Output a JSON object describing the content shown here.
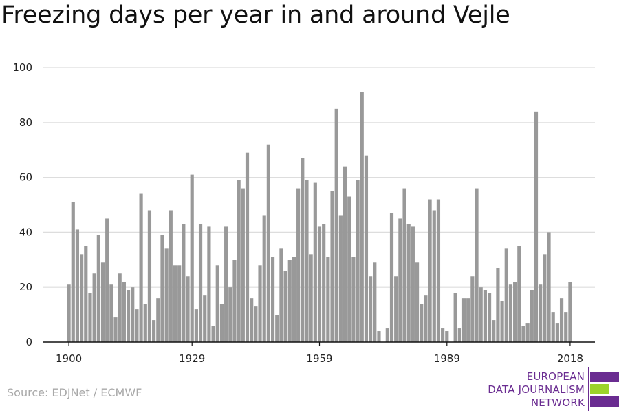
{
  "title": "Freezing days per year in and around Vejle",
  "source": "Source: EDJNet / ECMWF",
  "logo": {
    "lines": [
      "EUROPEAN",
      "DATA JOURNALISM",
      "NETWORK"
    ],
    "colors": {
      "purple": "#6a2c91",
      "green": "#9bd32a"
    }
  },
  "colors": {
    "bar": "#999999",
    "grid": "#dddddd",
    "axis": "#111111"
  },
  "chart_data": {
    "type": "bar",
    "title": "Freezing days per year in and around Vejle",
    "xlabel": "",
    "ylabel": "",
    "ylim": [
      0,
      100
    ],
    "yticks": [
      0,
      20,
      40,
      60,
      80,
      100
    ],
    "xticks": [
      1900,
      1929,
      1959,
      1989,
      2018
    ],
    "grid": true,
    "x": [
      1900,
      1901,
      1902,
      1903,
      1904,
      1905,
      1906,
      1907,
      1908,
      1909,
      1910,
      1911,
      1912,
      1913,
      1914,
      1915,
      1916,
      1917,
      1918,
      1919,
      1920,
      1921,
      1922,
      1923,
      1924,
      1925,
      1926,
      1927,
      1928,
      1929,
      1930,
      1931,
      1932,
      1933,
      1934,
      1935,
      1936,
      1937,
      1938,
      1939,
      1940,
      1941,
      1942,
      1943,
      1944,
      1945,
      1946,
      1947,
      1948,
      1949,
      1950,
      1951,
      1952,
      1953,
      1954,
      1955,
      1956,
      1957,
      1958,
      1959,
      1960,
      1961,
      1962,
      1963,
      1964,
      1965,
      1966,
      1967,
      1968,
      1969,
      1970,
      1971,
      1972,
      1973,
      1974,
      1975,
      1976,
      1977,
      1978,
      1979,
      1980,
      1981,
      1982,
      1983,
      1984,
      1985,
      1986,
      1987,
      1988,
      1989,
      1990,
      1991,
      1992,
      1993,
      1994,
      1995,
      1996,
      1997,
      1998,
      1999,
      2000,
      2001,
      2002,
      2003,
      2004,
      2005,
      2006,
      2007,
      2008,
      2009,
      2010,
      2011,
      2012,
      2013,
      2014,
      2015,
      2016,
      2017,
      2018
    ],
    "values": [
      21,
      51,
      41,
      32,
      35,
      18,
      25,
      39,
      29,
      45,
      21,
      9,
      25,
      22,
      19,
      20,
      12,
      54,
      14,
      48,
      8,
      16,
      39,
      34,
      48,
      28,
      28,
      43,
      24,
      61,
      12,
      43,
      17,
      42,
      6,
      28,
      14,
      42,
      20,
      30,
      59,
      56,
      69,
      16,
      13,
      28,
      46,
      72,
      31,
      10,
      34,
      26,
      30,
      31,
      56,
      67,
      59,
      32,
      58,
      42,
      43,
      31,
      55,
      85,
      46,
      64,
      53,
      31,
      59,
      91,
      68,
      24,
      29,
      4,
      0,
      5,
      47,
      24,
      45,
      56,
      43,
      42,
      29,
      14,
      17,
      52,
      48,
      52,
      5,
      4,
      0,
      18,
      5,
      16,
      16,
      24,
      56,
      20,
      19,
      18,
      8,
      27,
      15,
      34,
      21,
      22,
      35,
      6,
      7,
      19,
      84,
      21,
      32,
      40,
      11,
      7,
      16,
      11,
      22
    ]
  }
}
